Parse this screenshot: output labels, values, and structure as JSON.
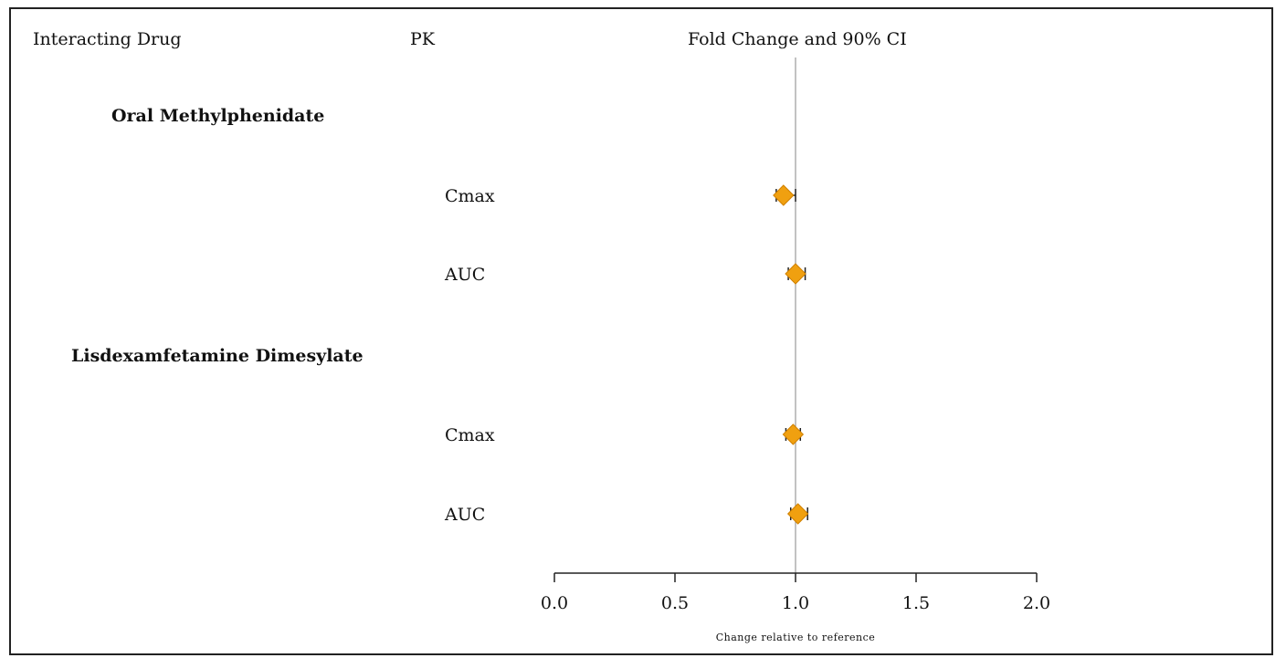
{
  "headers": {
    "drug": "Interacting Drug",
    "pk": "PK",
    "effect": "Fold Change and 90% CI"
  },
  "groups": [
    {
      "label": "Oral Methylphenidate"
    },
    {
      "label": "Lisdexamfetamine Dimesylate"
    }
  ],
  "colors": {
    "marker": "#f0a010",
    "whisker": "#222222",
    "reference_line": "#999999",
    "axis": "#222222"
  },
  "chart_data": {
    "type": "forest",
    "xlabel": "Change relative to reference",
    "xlim": [
      0.0,
      2.0
    ],
    "ticks": [
      "0.0",
      "0.5",
      "1.0",
      "1.5",
      "2.0"
    ],
    "reference_value": 1.0,
    "rows": [
      {
        "group": "Oral Methylphenidate",
        "pk": "Cmax",
        "estimate": 0.95,
        "ci": [
          0.92,
          1.0
        ]
      },
      {
        "group": "Oral Methylphenidate",
        "pk": "AUC",
        "estimate": 1.0,
        "ci": [
          0.97,
          1.04
        ]
      },
      {
        "group": "Lisdexamfetamine Dimesylate",
        "pk": "Cmax",
        "estimate": 0.99,
        "ci": [
          0.96,
          1.02
        ]
      },
      {
        "group": "Lisdexamfetamine Dimesylate",
        "pk": "AUC",
        "estimate": 1.01,
        "ci": [
          0.98,
          1.05
        ]
      }
    ]
  }
}
